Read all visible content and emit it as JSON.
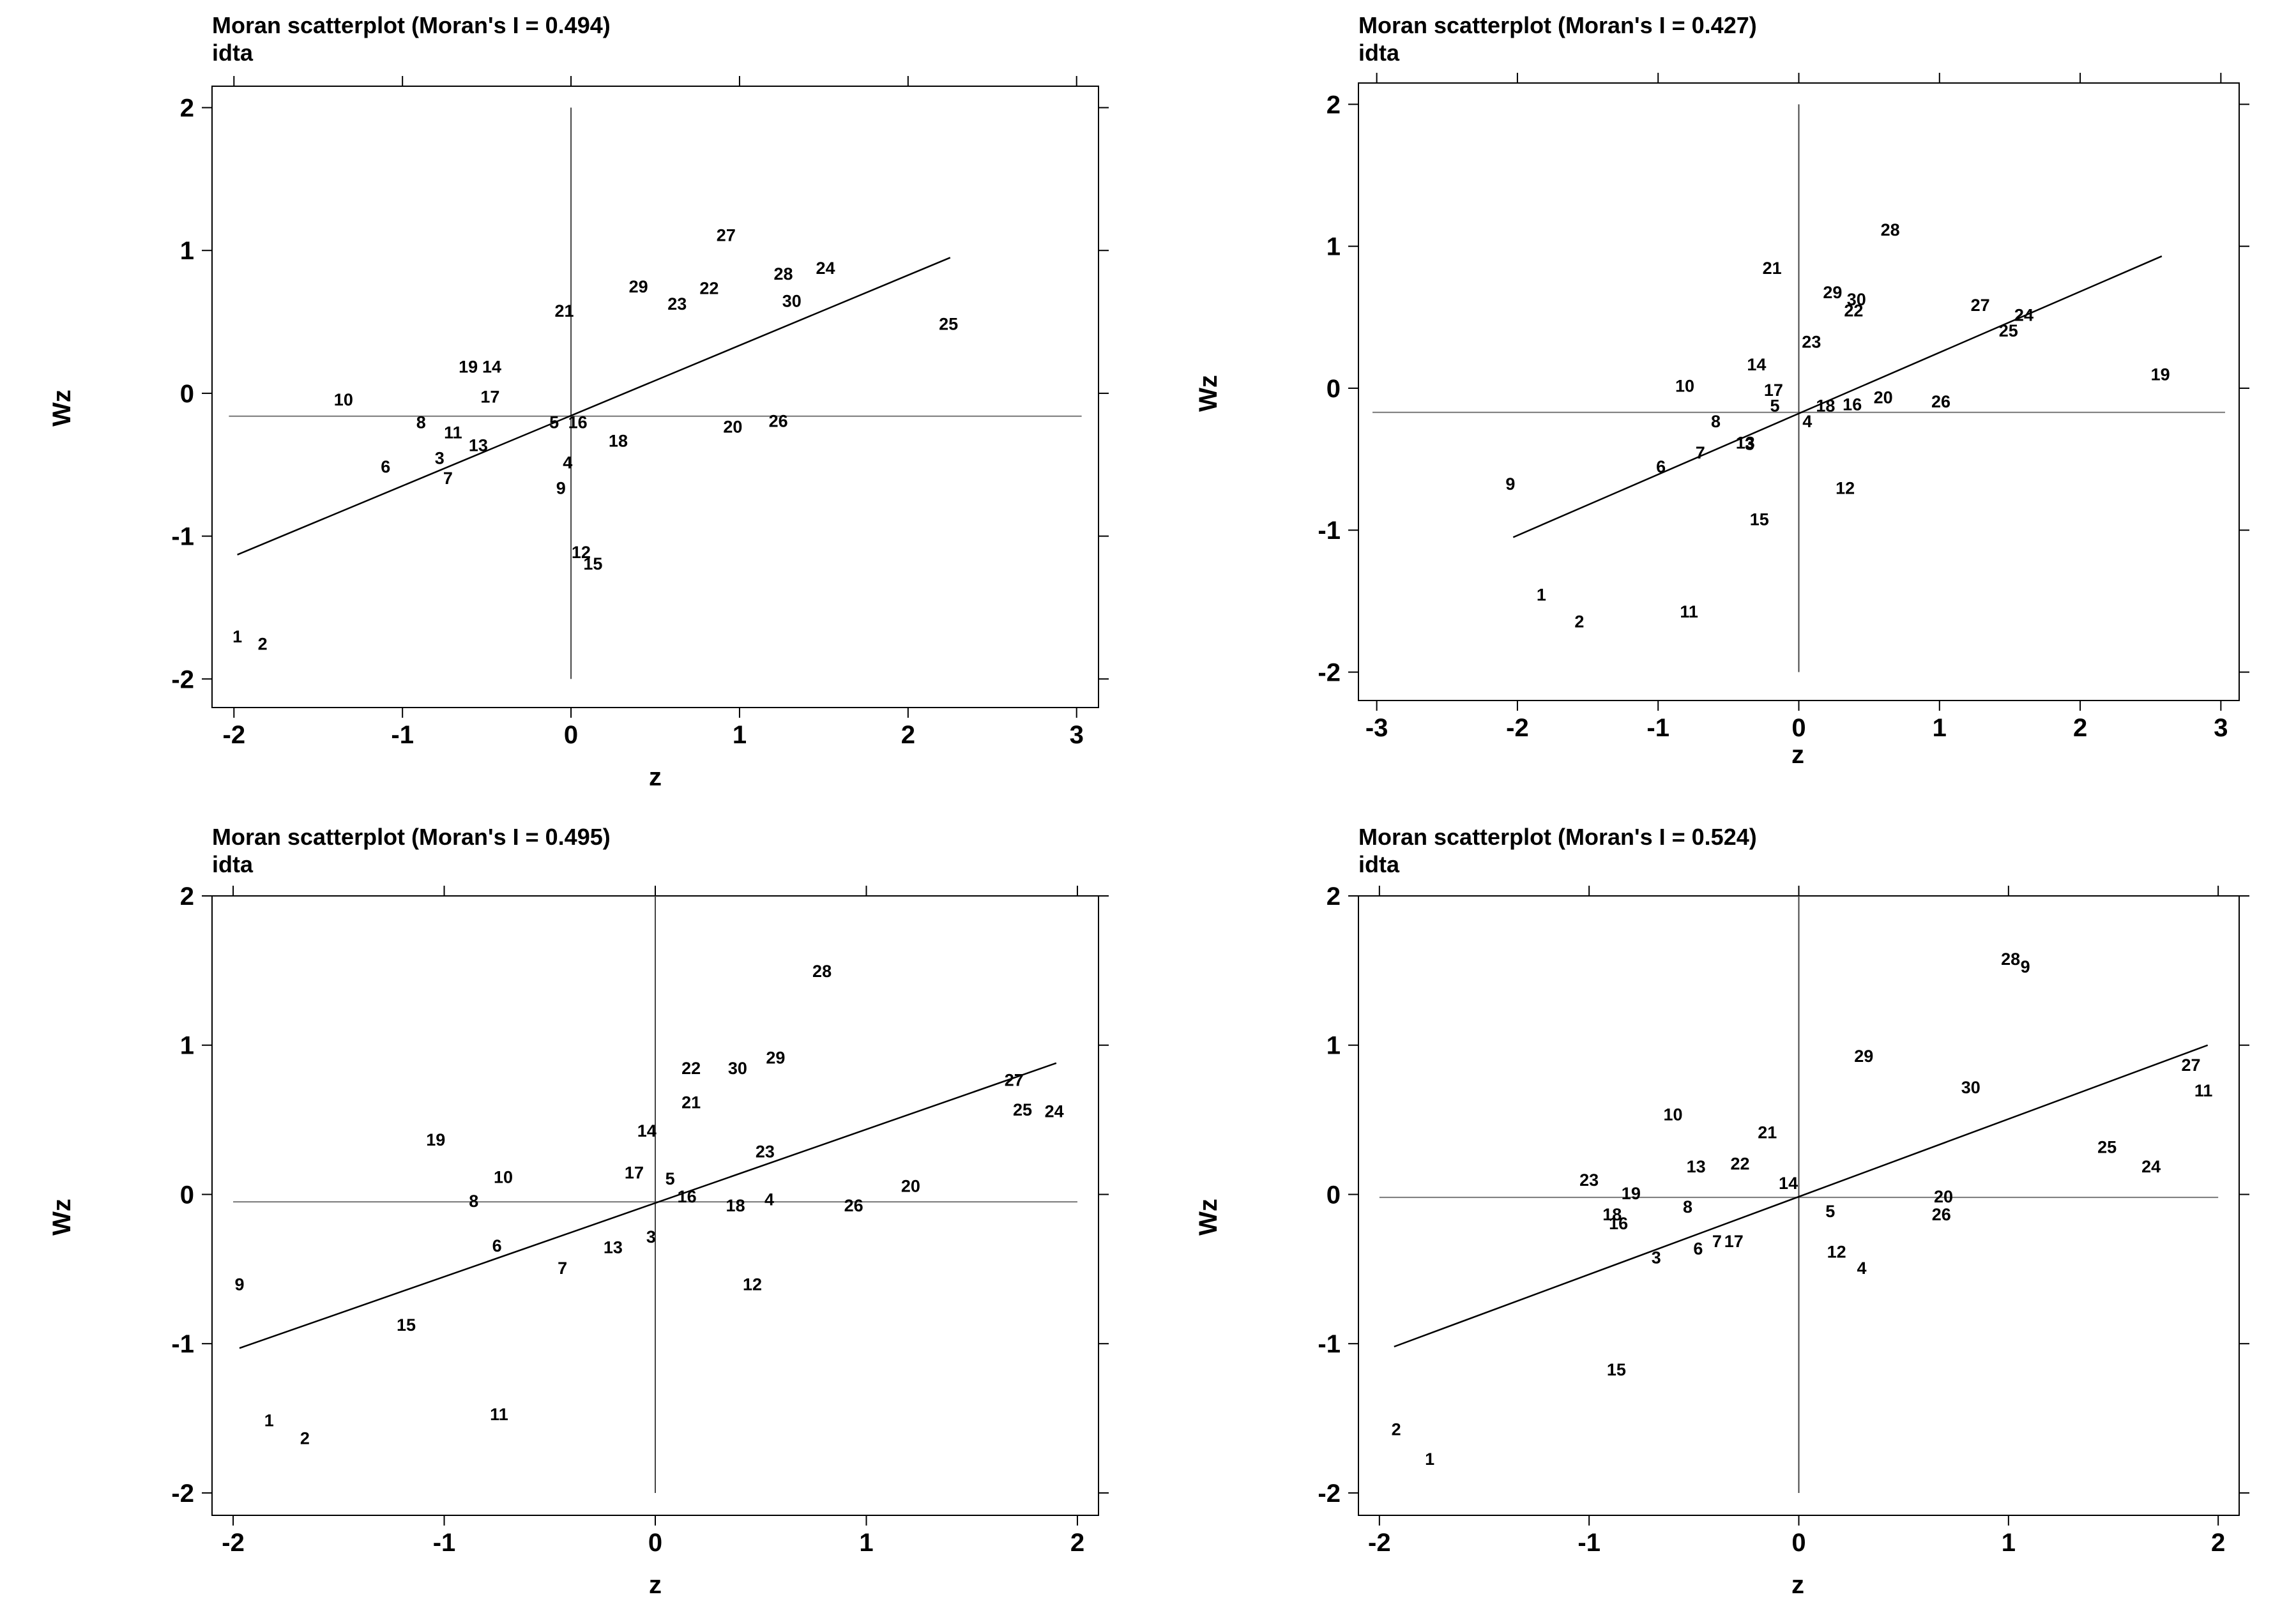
{
  "chart_data": [
    {
      "type": "scatter",
      "title": "Moran scatterplot (Moran's I = 0.494)",
      "subtitle": "idta",
      "xlabel": "z",
      "ylabel": "Wz",
      "xlim": [
        -2.13,
        3.13
      ],
      "ylim": [
        -2.2,
        2.15
      ],
      "xticks": [
        -2,
        -1,
        0,
        1,
        2,
        3
      ],
      "yticks": [
        -2,
        -1,
        0,
        1,
        2
      ],
      "hline": -0.16,
      "vline": 0,
      "fit": {
        "x": [
          -1.98,
          2.25
        ],
        "y": [
          -1.13,
          0.95
        ]
      },
      "points": [
        {
          "label": "1",
          "x": -1.98,
          "y": -1.7
        },
        {
          "label": "2",
          "x": -1.83,
          "y": -1.75
        },
        {
          "label": "3",
          "x": -0.78,
          "y": -0.45
        },
        {
          "label": "4",
          "x": -0.02,
          "y": -0.48
        },
        {
          "label": "5",
          "x": -0.1,
          "y": -0.2
        },
        {
          "label": "6",
          "x": -1.1,
          "y": -0.51
        },
        {
          "label": "7",
          "x": -0.73,
          "y": -0.59
        },
        {
          "label": "8",
          "x": -0.89,
          "y": -0.2
        },
        {
          "label": "9",
          "x": -0.06,
          "y": -0.66
        },
        {
          "label": "10",
          "x": -1.35,
          "y": -0.04
        },
        {
          "label": "11",
          "x": -0.7,
          "y": -0.27
        },
        {
          "label": "12",
          "x": 0.06,
          "y": -1.11
        },
        {
          "label": "13",
          "x": -0.55,
          "y": -0.36
        },
        {
          "label": "14",
          "x": -0.47,
          "y": 0.19
        },
        {
          "label": "15",
          "x": 0.13,
          "y": -1.19
        },
        {
          "label": "16",
          "x": 0.04,
          "y": -0.2
        },
        {
          "label": "17",
          "x": -0.48,
          "y": -0.02
        },
        {
          "label": "18",
          "x": 0.28,
          "y": -0.33
        },
        {
          "label": "19",
          "x": -0.61,
          "y": 0.19
        },
        {
          "label": "20",
          "x": 0.96,
          "y": -0.23
        },
        {
          "label": "21",
          "x": -0.04,
          "y": 0.58
        },
        {
          "label": "22",
          "x": 0.82,
          "y": 0.74
        },
        {
          "label": "23",
          "x": 0.63,
          "y": 0.63
        },
        {
          "label": "24",
          "x": 1.51,
          "y": 0.88
        },
        {
          "label": "25",
          "x": 2.24,
          "y": 0.49
        },
        {
          "label": "26",
          "x": 1.23,
          "y": -0.19
        },
        {
          "label": "27",
          "x": 0.92,
          "y": 1.11
        },
        {
          "label": "28",
          "x": 1.26,
          "y": 0.84
        },
        {
          "label": "29",
          "x": 0.4,
          "y": 0.75
        },
        {
          "label": "30",
          "x": 1.31,
          "y": 0.65
        }
      ]
    },
    {
      "type": "scatter",
      "title": "Moran scatterplot (Moran's I = 0.427)",
      "subtitle": "idta",
      "xlabel": "z",
      "ylabel": "Wz",
      "xlim": [
        -3.13,
        3.13
      ],
      "ylim": [
        -2.2,
        2.15
      ],
      "xticks": [
        -3,
        -2,
        -1,
        0,
        1,
        2,
        3
      ],
      "yticks": [
        -2,
        -1,
        0,
        1,
        2
      ],
      "hline": -0.17,
      "vline": 0,
      "fit": {
        "x": [
          -2.03,
          2.58
        ],
        "y": [
          -1.05,
          0.93
        ]
      },
      "points": [
        {
          "label": "1",
          "x": -1.83,
          "y": -1.45
        },
        {
          "label": "2",
          "x": -1.56,
          "y": -1.64
        },
        {
          "label": "3",
          "x": -0.35,
          "y": -0.39
        },
        {
          "label": "4",
          "x": 0.06,
          "y": -0.23
        },
        {
          "label": "5",
          "x": -0.17,
          "y": -0.12
        },
        {
          "label": "6",
          "x": -0.98,
          "y": -0.55
        },
        {
          "label": "7",
          "x": -0.7,
          "y": -0.45
        },
        {
          "label": "8",
          "x": -0.59,
          "y": -0.23
        },
        {
          "label": "9",
          "x": -2.05,
          "y": -0.67
        },
        {
          "label": "10",
          "x": -0.81,
          "y": 0.02
        },
        {
          "label": "11",
          "x": -0.78,
          "y": -1.57
        },
        {
          "label": "12",
          "x": 0.33,
          "y": -0.7
        },
        {
          "label": "13",
          "x": -0.38,
          "y": -0.38
        },
        {
          "label": "14",
          "x": -0.3,
          "y": 0.17
        },
        {
          "label": "15",
          "x": -0.28,
          "y": -0.92
        },
        {
          "label": "16",
          "x": 0.38,
          "y": -0.11
        },
        {
          "label": "17",
          "x": -0.18,
          "y": -0.01
        },
        {
          "label": "18",
          "x": 0.19,
          "y": -0.12
        },
        {
          "label": "19",
          "x": 2.57,
          "y": 0.1
        },
        {
          "label": "20",
          "x": 0.6,
          "y": -0.06
        },
        {
          "label": "21",
          "x": -0.19,
          "y": 0.85
        },
        {
          "label": "22",
          "x": 0.39,
          "y": 0.55
        },
        {
          "label": "23",
          "x": 0.09,
          "y": 0.33
        },
        {
          "label": "24",
          "x": 1.6,
          "y": 0.52
        },
        {
          "label": "25",
          "x": 1.49,
          "y": 0.41
        },
        {
          "label": "26",
          "x": 1.01,
          "y": -0.09
        },
        {
          "label": "27",
          "x": 1.29,
          "y": 0.59
        },
        {
          "label": "28",
          "x": 0.65,
          "y": 1.12
        },
        {
          "label": "29",
          "x": 0.24,
          "y": 0.68
        },
        {
          "label": "30",
          "x": 0.41,
          "y": 0.63
        }
      ]
    },
    {
      "type": "scatter",
      "title": "Moran scatterplot (Moran's I = 0.495)",
      "subtitle": "idta",
      "xlabel": "z",
      "ylabel": "Wz",
      "xlim": [
        -2.1,
        2.1
      ],
      "ylim": [
        -2.15,
        2.0
      ],
      "xticks": [
        -2,
        -1,
        0,
        1,
        2
      ],
      "yticks": [
        -2,
        -1,
        0,
        1,
        2
      ],
      "hline": -0.05,
      "vline": 0,
      "fit": {
        "x": [
          -1.97,
          1.9
        ],
        "y": [
          -1.03,
          0.88
        ]
      },
      "points": [
        {
          "label": "1",
          "x": -1.83,
          "y": -1.51
        },
        {
          "label": "2",
          "x": -1.66,
          "y": -1.63
        },
        {
          "label": "3",
          "x": -0.02,
          "y": -0.28
        },
        {
          "label": "4",
          "x": 0.54,
          "y": -0.03
        },
        {
          "label": "5",
          "x": 0.07,
          "y": 0.11
        },
        {
          "label": "6",
          "x": -0.75,
          "y": -0.34
        },
        {
          "label": "7",
          "x": -0.44,
          "y": -0.49
        },
        {
          "label": "8",
          "x": -0.86,
          "y": -0.04
        },
        {
          "label": "9",
          "x": -1.97,
          "y": -0.6
        },
        {
          "label": "10",
          "x": -0.72,
          "y": 0.12
        },
        {
          "label": "11",
          "x": -0.74,
          "y": -1.47
        },
        {
          "label": "12",
          "x": 0.46,
          "y": -0.6
        },
        {
          "label": "13",
          "x": -0.2,
          "y": -0.35
        },
        {
          "label": "14",
          "x": -0.04,
          "y": 0.43
        },
        {
          "label": "15",
          "x": -1.18,
          "y": -0.87
        },
        {
          "label": "16",
          "x": 0.15,
          "y": -0.01
        },
        {
          "label": "17",
          "x": -0.1,
          "y": 0.15
        },
        {
          "label": "18",
          "x": 0.38,
          "y": -0.07
        },
        {
          "label": "19",
          "x": -1.04,
          "y": 0.37
        },
        {
          "label": "20",
          "x": 1.21,
          "y": 0.06
        },
        {
          "label": "21",
          "x": 0.17,
          "y": 0.62
        },
        {
          "label": "22",
          "x": 0.17,
          "y": 0.85
        },
        {
          "label": "23",
          "x": 0.52,
          "y": 0.29
        },
        {
          "label": "24",
          "x": 1.89,
          "y": 0.56
        },
        {
          "label": "25",
          "x": 1.74,
          "y": 0.57
        },
        {
          "label": "26",
          "x": 0.94,
          "y": -0.07
        },
        {
          "label": "27",
          "x": 1.7,
          "y": 0.77
        },
        {
          "label": "28",
          "x": 0.79,
          "y": 1.5
        },
        {
          "label": "29",
          "x": 0.57,
          "y": 0.92
        },
        {
          "label": "30",
          "x": 0.39,
          "y": 0.85
        }
      ]
    },
    {
      "type": "scatter",
      "title": "Moran scatterplot (Moran's I = 0.524)",
      "subtitle": "idta",
      "xlabel": "z",
      "ylabel": "Wz",
      "xlim": [
        -2.1,
        2.1
      ],
      "ylim": [
        -2.15,
        2.0
      ],
      "xticks": [
        -2,
        -1,
        0,
        1,
        2
      ],
      "yticks": [
        -2,
        -1,
        0,
        1,
        2
      ],
      "hline": -0.02,
      "vline": 0,
      "fit": {
        "x": [
          -1.93,
          1.95
        ],
        "y": [
          -1.02,
          1.0
        ]
      },
      "points": [
        {
          "label": "1",
          "x": -1.76,
          "y": -1.77
        },
        {
          "label": "2",
          "x": -1.92,
          "y": -1.57
        },
        {
          "label": "3",
          "x": -0.68,
          "y": -0.42
        },
        {
          "label": "4",
          "x": 0.3,
          "y": -0.49
        },
        {
          "label": "5",
          "x": 0.15,
          "y": -0.11
        },
        {
          "label": "6",
          "x": -0.48,
          "y": -0.36
        },
        {
          "label": "7",
          "x": -0.39,
          "y": -0.31
        },
        {
          "label": "8",
          "x": -0.53,
          "y": -0.08
        },
        {
          "label": "9",
          "x": 1.08,
          "y": 1.53
        },
        {
          "label": "10",
          "x": -0.6,
          "y": 0.54
        },
        {
          "label": "11",
          "x": 1.93,
          "y": 0.7
        },
        {
          "label": "12",
          "x": 0.18,
          "y": -0.38
        },
        {
          "label": "13",
          "x": -0.49,
          "y": 0.19
        },
        {
          "label": "14",
          "x": -0.05,
          "y": 0.08
        },
        {
          "label": "15",
          "x": -0.87,
          "y": -1.17
        },
        {
          "label": "16",
          "x": -0.86,
          "y": -0.19
        },
        {
          "label": "17",
          "x": -0.31,
          "y": -0.31
        },
        {
          "label": "18",
          "x": -0.89,
          "y": -0.13
        },
        {
          "label": "19",
          "x": -0.8,
          "y": 0.01
        },
        {
          "label": "20",
          "x": 0.69,
          "y": -0.01
        },
        {
          "label": "21",
          "x": -0.15,
          "y": 0.42
        },
        {
          "label": "22",
          "x": -0.28,
          "y": 0.21
        },
        {
          "label": "23",
          "x": -1.0,
          "y": 0.1
        },
        {
          "label": "24",
          "x": 1.68,
          "y": 0.19
        },
        {
          "label": "25",
          "x": 1.47,
          "y": 0.32
        },
        {
          "label": "26",
          "x": 0.68,
          "y": -0.13
        },
        {
          "label": "27",
          "x": 1.87,
          "y": 0.87
        },
        {
          "label": "28",
          "x": 1.01,
          "y": 1.58
        },
        {
          "label": "29",
          "x": 0.31,
          "y": 0.93
        },
        {
          "label": "30",
          "x": 0.82,
          "y": 0.72
        }
      ]
    }
  ]
}
